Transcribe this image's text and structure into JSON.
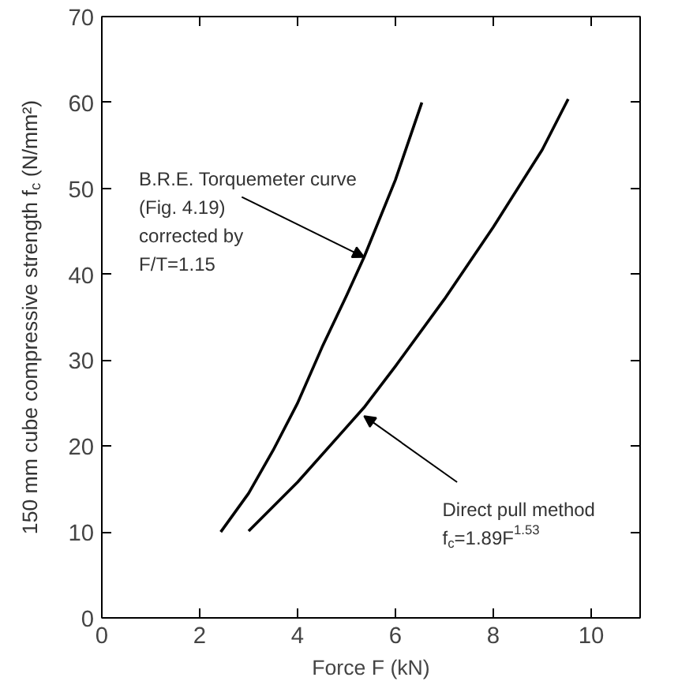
{
  "chart_data": {
    "type": "line",
    "xlabel": "Force F (kN)",
    "ylabel": "150 mm cube compressive strength f$_{c}$ (N/mm²)",
    "xlim": [
      0,
      11
    ],
    "ylim": [
      0,
      70
    ],
    "xticks": [
      0,
      2,
      4,
      6,
      8,
      10
    ],
    "yticks": [
      0,
      10,
      20,
      30,
      40,
      50,
      60,
      70
    ],
    "grid": false,
    "marker": "none",
    "line_style": "solid",
    "series": [
      {
        "color": "#000000",
        "x": [
          2.43,
          3,
          3.5,
          4,
          4.5,
          5,
          5.36,
          6,
          6.54
        ],
        "values": [
          10,
          14.5,
          19.5,
          25,
          31.5,
          37.5,
          42,
          51,
          60
        ]
      },
      {
        "color": "#000000",
        "x": [
          3,
          4,
          5,
          5.36,
          6,
          7,
          8,
          9,
          9.53
        ],
        "values": [
          10.1,
          15.8,
          22.2,
          24.5,
          29.3,
          37.1,
          45.5,
          54.5,
          60.4
        ]
      }
    ],
    "annotations": [
      {
        "text": "B.R.E. Torquemeter curve\n(Fig. 4.19)\ncorrected by\nF/T=1.15",
        "x": 5.36,
        "y": 42
      },
      {
        "text": "Direct pull method\nf$_{c}$=1.89F$^{1.53}$",
        "x": 5.36,
        "y": 23.5
      }
    ]
  }
}
